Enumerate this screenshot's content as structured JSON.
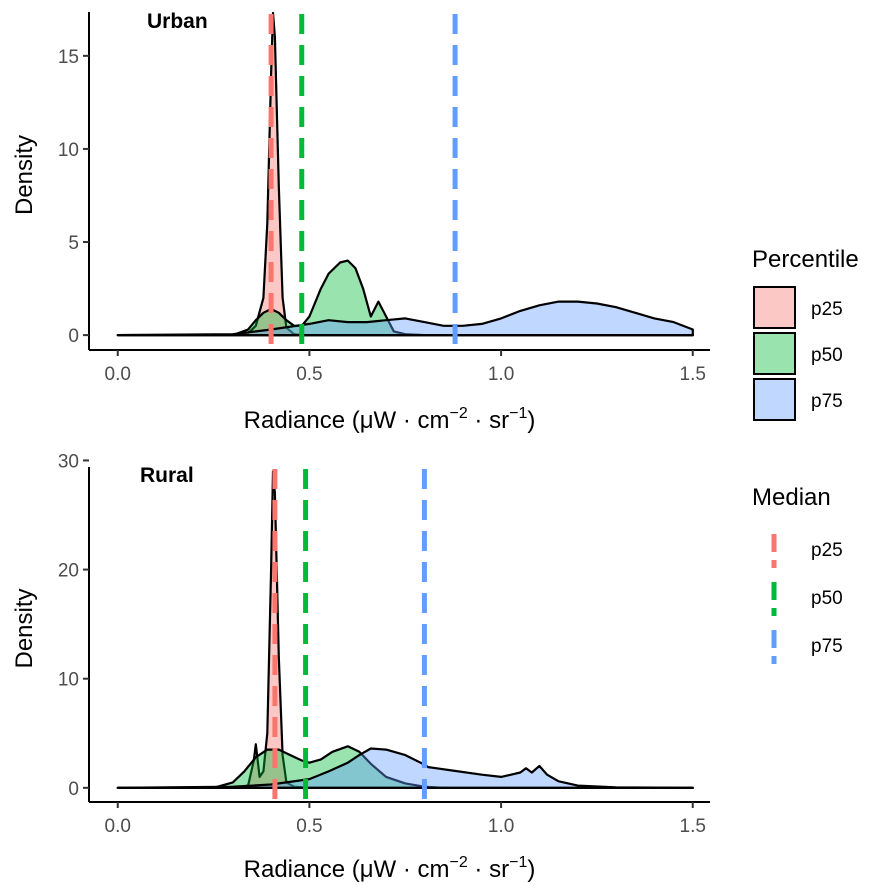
{
  "colors": {
    "p25": "#F8766D",
    "p50": "#00BA38",
    "p75": "#619CFF"
  },
  "legend": {
    "percentile_title": "Percentile",
    "median_title": "Median",
    "entries": [
      "p25",
      "p50",
      "p75"
    ]
  },
  "chart_data": [
    {
      "type": "area",
      "panel_label": "Urban",
      "xlabel": "Radiance (μW · cm⁻² · sr⁻¹)",
      "xlabel_parts": {
        "base": "Radiance (μW",
        "dot1": "·",
        "cm": "cm",
        "exp1": "−2",
        "dot2": "·",
        "sr": "sr",
        "exp2": "−1",
        "close": ")"
      },
      "ylabel": "Density",
      "xlim": [
        -0.075,
        1.545
      ],
      "ylim": [
        -0.8,
        18
      ],
      "xticks": [
        0.0,
        0.5,
        1.0,
        1.5
      ],
      "xtick_labels": [
        "0.0",
        "0.5",
        "1.0",
        "1.5"
      ],
      "yticks": [
        0,
        5,
        10,
        15
      ],
      "ytick_labels": [
        "0",
        "5",
        "10",
        "15"
      ],
      "medians": [
        {
          "name": "p25",
          "x": 0.4
        },
        {
          "name": "p50",
          "x": 0.48
        },
        {
          "name": "p75",
          "x": 0.88
        }
      ],
      "series": [
        {
          "name": "p25",
          "x": [
            0.0,
            0.3,
            0.34,
            0.36,
            0.38,
            0.39,
            0.4,
            0.405,
            0.41,
            0.42,
            0.43,
            0.44,
            0.46,
            0.48,
            0.5,
            0.55,
            0.7,
            1.0,
            1.5
          ],
          "y": [
            0,
            0,
            0.1,
            0.5,
            2.0,
            6.0,
            14.0,
            17.3,
            16.0,
            8.0,
            2.0,
            0.4,
            0.05,
            0,
            0,
            0,
            0,
            0,
            0
          ]
        },
        {
          "name": "p50",
          "x": [
            0.0,
            0.3,
            0.34,
            0.36,
            0.38,
            0.4,
            0.42,
            0.44,
            0.46,
            0.48,
            0.5,
            0.53,
            0.55,
            0.58,
            0.6,
            0.62,
            0.64,
            0.66,
            0.68,
            0.7,
            0.72,
            0.75,
            0.8,
            1.0,
            1.5
          ],
          "y": [
            0,
            0,
            0.3,
            0.8,
            1.2,
            1.4,
            1.2,
            0.8,
            0.5,
            0.5,
            1.0,
            2.5,
            3.3,
            3.9,
            4.0,
            3.6,
            2.5,
            1.0,
            1.8,
            1.0,
            0.2,
            0.05,
            0,
            0,
            0
          ]
        },
        {
          "name": "p75",
          "x": [
            0.0,
            0.3,
            0.4,
            0.5,
            0.55,
            0.6,
            0.65,
            0.7,
            0.75,
            0.8,
            0.85,
            0.9,
            0.95,
            1.0,
            1.05,
            1.1,
            1.15,
            1.2,
            1.25,
            1.3,
            1.35,
            1.4,
            1.45,
            1.5
          ],
          "y": [
            0,
            0.05,
            0.3,
            0.6,
            0.8,
            0.7,
            0.7,
            0.8,
            0.9,
            0.7,
            0.5,
            0.5,
            0.6,
            0.9,
            1.3,
            1.6,
            1.8,
            1.8,
            1.7,
            1.5,
            1.2,
            0.9,
            0.7,
            0.3
          ]
        }
      ]
    },
    {
      "type": "area",
      "panel_label": "Rural",
      "xlabel": "Radiance (μW · cm⁻² · sr⁻¹)",
      "xlabel_parts": {
        "base": "Radiance (μW",
        "dot1": "·",
        "cm": "cm",
        "exp1": "−2",
        "dot2": "·",
        "sr": "sr",
        "exp2": "−1",
        "close": ")"
      },
      "ylabel": "Density",
      "xlim": [
        -0.075,
        1.545
      ],
      "ylim": [
        -1.3,
        30.5
      ],
      "xticks": [
        0.0,
        0.5,
        1.0,
        1.5
      ],
      "xtick_labels": [
        "0.0",
        "0.5",
        "1.0",
        "1.5"
      ],
      "yticks": [
        0,
        10,
        20,
        30
      ],
      "ytick_labels": [
        "0",
        "10",
        "20",
        "30"
      ],
      "medians": [
        {
          "name": "p25",
          "x": 0.41
        },
        {
          "name": "p50",
          "x": 0.49
        },
        {
          "name": "p75",
          "x": 0.8
        }
      ],
      "series": [
        {
          "name": "p25",
          "x": [
            0.0,
            0.3,
            0.34,
            0.355,
            0.36,
            0.365,
            0.37,
            0.38,
            0.39,
            0.4,
            0.405,
            0.41,
            0.42,
            0.43,
            0.44,
            0.46,
            0.5,
            1.0,
            1.5
          ],
          "y": [
            0,
            0,
            0.2,
            2.5,
            4.0,
            2.5,
            1.0,
            1.5,
            5.0,
            20.0,
            29.0,
            27.0,
            12.0,
            3.0,
            0.5,
            0.1,
            0,
            0,
            0
          ]
        },
        {
          "name": "p50",
          "x": [
            0.0,
            0.25,
            0.3,
            0.33,
            0.36,
            0.39,
            0.42,
            0.45,
            0.48,
            0.5,
            0.53,
            0.56,
            0.6,
            0.63,
            0.66,
            0.7,
            0.75,
            0.8,
            0.85,
            1.0,
            1.5
          ],
          "y": [
            0,
            0,
            0.5,
            1.5,
            2.8,
            3.5,
            3.5,
            3.0,
            2.5,
            2.3,
            2.6,
            3.3,
            3.8,
            3.3,
            2.2,
            1.0,
            0.4,
            0.1,
            0,
            0,
            0
          ]
        },
        {
          "name": "p75",
          "x": [
            0.0,
            0.3,
            0.4,
            0.5,
            0.55,
            0.6,
            0.63,
            0.66,
            0.7,
            0.75,
            0.79,
            0.81,
            0.83,
            0.87,
            0.95,
            1.0,
            1.05,
            1.065,
            1.08,
            1.1,
            1.12,
            1.15,
            1.2,
            1.3,
            1.5
          ],
          "y": [
            0,
            0.1,
            0.3,
            0.8,
            1.5,
            2.3,
            3.0,
            3.6,
            3.5,
            3.0,
            2.3,
            1.9,
            1.8,
            1.6,
            1.2,
            1.0,
            1.4,
            1.8,
            1.4,
            2.0,
            1.2,
            0.6,
            0.2,
            0.05,
            0
          ]
        }
      ]
    }
  ]
}
